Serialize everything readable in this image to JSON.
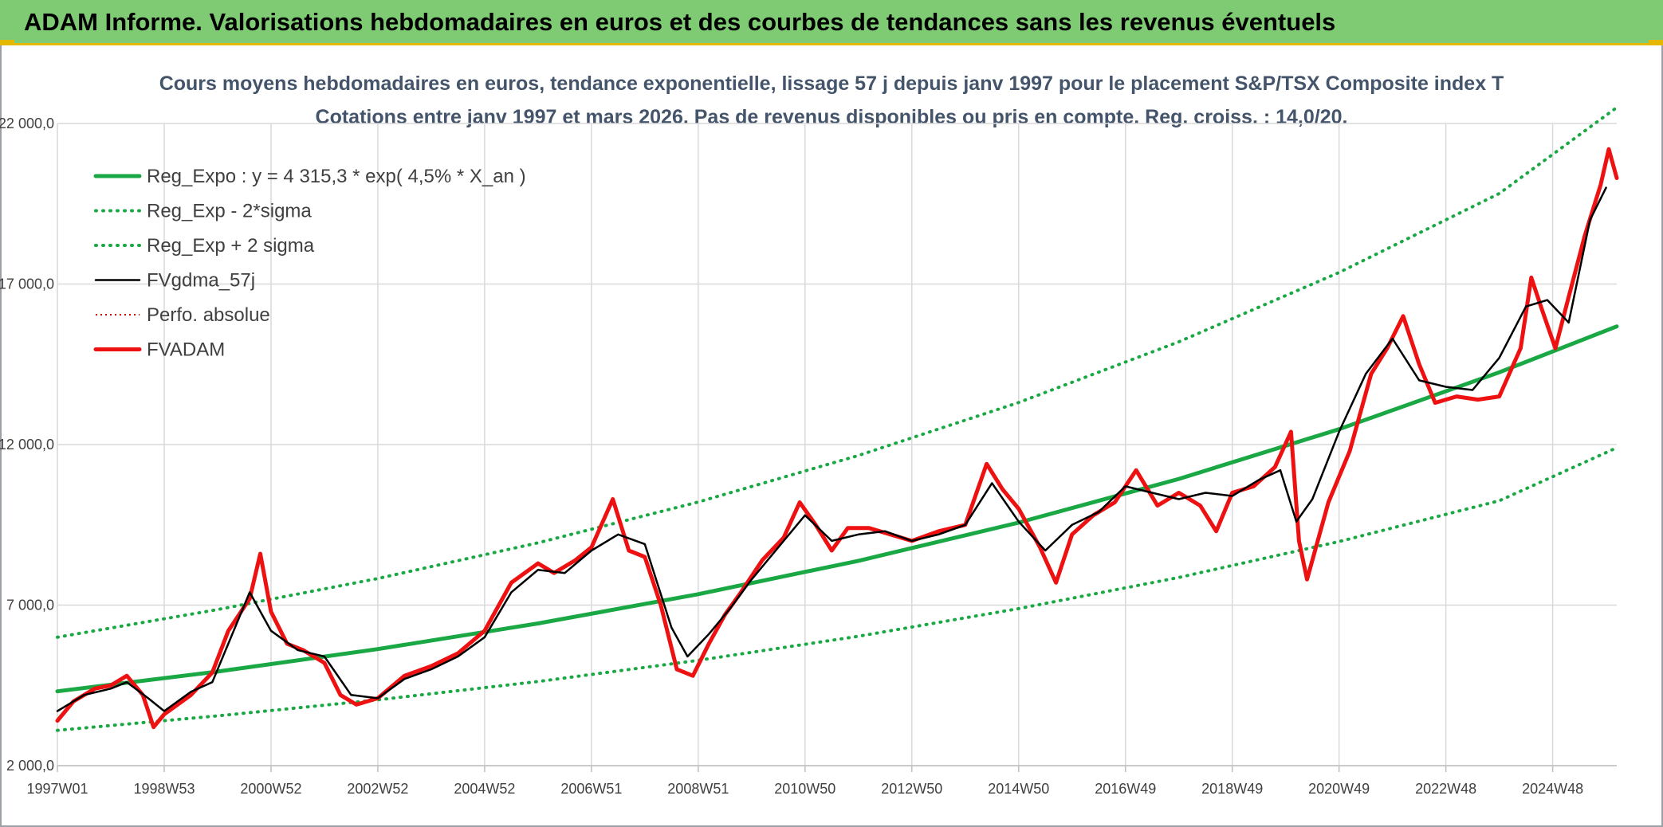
{
  "header": {
    "banner_title": "ADAM Informe. Valorisations hebdomadaires en euros et des courbes de tendances sans les revenus éventuels"
  },
  "colors": {
    "banner_bg": "#7ecb73",
    "banner_accent": "#e5b800",
    "reg_expo": "#1aa845",
    "fvadam": "#ee1111",
    "fvgdma": "#000000",
    "perfo": "#cc0000",
    "title_text": "#44546a"
  },
  "chart_data": {
    "type": "line",
    "title": "Cours moyens hebdomadaires en euros, tendance exponentielle, lissage 57 j depuis janv 1997 pour le placement S&P/TSX Composite index T",
    "subtitle": "Cotations entre janv 1997 et mars 2026. Pas de revenus disponibles ou pris en compte. Reg. croiss. : 14,0/20.",
    "xlabel": "",
    "ylabel": "",
    "xlim": [
      1997.0,
      2026.2
    ],
    "ylim": [
      2000,
      22000
    ],
    "grid": true,
    "legend_position": "top-left",
    "y_ticks": [
      2000,
      7000,
      12000,
      17000,
      22000
    ],
    "y_tick_labels": [
      "2 000,0",
      "7 000,0",
      "12 000,0",
      "17 000,0",
      "22 000,0"
    ],
    "x_ticks": [
      1997.0,
      1999.0,
      2001.0,
      2003.0,
      2005.0,
      2007.0,
      2009.0,
      2011.0,
      2013.0,
      2015.0,
      2017.0,
      2019.0,
      2021.0,
      2023.0,
      2025.0
    ],
    "x_tick_labels": [
      "1997W01",
      "1998W53",
      "2000W52",
      "2002W52",
      "2004W52",
      "2006W51",
      "2008W51",
      "2010W50",
      "2012W50",
      "2014W50",
      "2016W49",
      "2018W49",
      "2020W49",
      "2022W48",
      "2024W48"
    ],
    "series": [
      {
        "name": "Reg_Expo : y = 4 315,3 * exp( 4,5% *  X_an )",
        "style": "solid-thick",
        "color": "#1aa845",
        "x": [
          1997.0,
          2000.0,
          2003.0,
          2006.0,
          2009.0,
          2012.0,
          2015.0,
          2018.0,
          2021.0,
          2024.0,
          2026.2
        ],
        "values": [
          4315,
          4930,
          5630,
          6430,
          7340,
          8380,
          9570,
          10930,
          12480,
          14250,
          15680
        ]
      },
      {
        "name": "Reg_Exp - 2*sigma",
        "style": "dotted",
        "color": "#1aa845",
        "x": [
          1997.0,
          2000.0,
          2003.0,
          2006.0,
          2009.0,
          2012.0,
          2015.0,
          2018.0,
          2021.0,
          2024.0,
          2026.2
        ],
        "values": [
          3100,
          3550,
          4050,
          4620,
          5280,
          6030,
          6890,
          7860,
          8980,
          10250,
          11900
        ]
      },
      {
        "name": "Reg_Exp + 2 sigma",
        "style": "dotted",
        "color": "#1aa845",
        "x": [
          1997.0,
          2000.0,
          2003.0,
          2006.0,
          2009.0,
          2012.0,
          2015.0,
          2018.0,
          2021.0,
          2024.0,
          2026.2
        ],
        "values": [
          6000,
          6860,
          7830,
          8940,
          10210,
          11660,
          13310,
          15200,
          17360,
          19820,
          22500
        ]
      },
      {
        "name": "FVgdma_57j",
        "style": "solid-thin",
        "color": "#000000",
        "x": [
          1997.0,
          1997.5,
          1998.0,
          1998.3,
          1998.7,
          1999.0,
          1999.5,
          1999.9,
          2000.2,
          2000.6,
          2001.0,
          2001.5,
          2002.0,
          2002.5,
          2003.0,
          2003.5,
          2004.0,
          2004.5,
          2005.0,
          2005.5,
          2006.0,
          2006.5,
          2007.0,
          2007.5,
          2008.0,
          2008.5,
          2008.8,
          2009.2,
          2009.6,
          2010.0,
          2010.5,
          2011.0,
          2011.5,
          2012.0,
          2012.5,
          2013.0,
          2013.5,
          2014.0,
          2014.5,
          2015.0,
          2015.5,
          2016.0,
          2016.5,
          2017.0,
          2017.5,
          2018.0,
          2018.5,
          2019.0,
          2019.5,
          2019.9,
          2020.2,
          2020.5,
          2021.0,
          2021.5,
          2022.0,
          2022.5,
          2023.0,
          2023.5,
          2024.0,
          2024.5,
          2024.9,
          2025.3,
          2025.7,
          2026.0
        ],
        "values": [
          3700,
          4200,
          4400,
          4600,
          4100,
          3700,
          4300,
          4600,
          5800,
          7400,
          6200,
          5600,
          5400,
          4200,
          4100,
          4700,
          5000,
          5400,
          6000,
          7400,
          8100,
          8000,
          8700,
          9200,
          8900,
          6300,
          5400,
          6100,
          6900,
          7800,
          8800,
          9800,
          9000,
          9200,
          9300,
          9000,
          9200,
          9500,
          10800,
          9600,
          8700,
          9500,
          9900,
          10700,
          10500,
          10300,
          10500,
          10400,
          10900,
          11200,
          9600,
          10300,
          12400,
          14200,
          15300,
          14000,
          13800,
          13700,
          14700,
          16300,
          16500,
          15800,
          19000,
          20000
        ]
      },
      {
        "name": "Perfo. absolue",
        "style": "dotted-thin",
        "color": "#cc0000",
        "x": [],
        "values": []
      },
      {
        "name": "FVADAM",
        "style": "solid-thick",
        "color": "#ee1111",
        "x": [
          1997.0,
          1997.3,
          1997.7,
          1998.0,
          1998.3,
          1998.6,
          1998.8,
          1999.0,
          1999.5,
          1999.9,
          2000.2,
          2000.6,
          2000.8,
          2001.0,
          2001.3,
          2001.6,
          2002.0,
          2002.3,
          2002.6,
          2003.0,
          2003.5,
          2004.0,
          2004.5,
          2005.0,
          2005.5,
          2006.0,
          2006.3,
          2006.7,
          2007.0,
          2007.4,
          2007.7,
          2008.0,
          2008.3,
          2008.6,
          2008.9,
          2009.2,
          2009.5,
          2009.8,
          2010.2,
          2010.6,
          2010.9,
          2011.2,
          2011.5,
          2011.8,
          2012.2,
          2012.6,
          2013.0,
          2013.5,
          2014.0,
          2014.4,
          2014.7,
          2015.0,
          2015.4,
          2015.7,
          2016.0,
          2016.4,
          2016.8,
          2017.2,
          2017.6,
          2018.0,
          2018.4,
          2018.7,
          2019.0,
          2019.4,
          2019.8,
          2020.1,
          2020.25,
          2020.4,
          2020.8,
          2021.2,
          2021.6,
          2021.9,
          2022.2,
          2022.5,
          2022.8,
          2023.2,
          2023.6,
          2024.0,
          2024.4,
          2024.6,
          2024.8,
          2025.05,
          2025.3,
          2025.6,
          2025.9,
          2026.05,
          2026.2
        ],
        "values": [
          3400,
          4000,
          4400,
          4500,
          4800,
          4200,
          3200,
          3600,
          4200,
          4900,
          6200,
          7200,
          8600,
          6800,
          5800,
          5600,
          5200,
          4200,
          3900,
          4100,
          4800,
          5100,
          5500,
          6200,
          7700,
          8300,
          8000,
          8400,
          8800,
          10300,
          8700,
          8500,
          7000,
          5000,
          4800,
          5800,
          6700,
          7400,
          8400,
          9100,
          10200,
          9500,
          8700,
          9400,
          9400,
          9200,
          9000,
          9300,
          9500,
          11400,
          10600,
          10000,
          8800,
          7700,
          9200,
          9800,
          10200,
          11200,
          10100,
          10500,
          10100,
          9300,
          10500,
          10700,
          11300,
          12400,
          9000,
          7800,
          10200,
          11800,
          14200,
          15000,
          16000,
          14500,
          13300,
          13500,
          13400,
          13500,
          15000,
          17200,
          16200,
          15000,
          16600,
          18500,
          20100,
          21200,
          20300
        ]
      }
    ]
  }
}
